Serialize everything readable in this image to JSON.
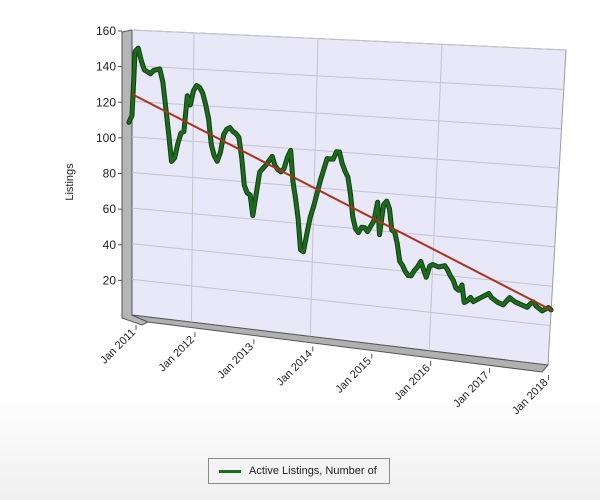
{
  "chart_data": {
    "type": "line",
    "ylabel": "Listings",
    "xlabel": "",
    "ylim": [
      0,
      160
    ],
    "yticks": [
      20,
      40,
      60,
      80,
      100,
      120,
      140,
      160
    ],
    "xticks": [
      "Jan 2011",
      "Jan 2012",
      "Jan 2013",
      "Jan 2014",
      "Jan 2015",
      "Jan 2016",
      "Jan 2017",
      "Jan 2018"
    ],
    "legend": "bottom-center",
    "grid": true,
    "three_d": true,
    "colors": {
      "series": "#1e6b1e",
      "trend": "#a8321e",
      "plot_bg": "#e8e8f8"
    },
    "series": [
      {
        "name": "Active Listings, Number of",
        "x": [
          2010.95,
          2011.0,
          2011.05,
          2011.1,
          2011.15,
          2011.2,
          2011.25,
          2011.3,
          2011.35,
          2011.45,
          2011.5,
          2011.55,
          2011.6,
          2011.65,
          2011.7,
          2011.75,
          2011.8,
          2011.85,
          2011.9,
          2011.95,
          2012.0,
          2012.05,
          2012.1,
          2012.15,
          2012.2,
          2012.25,
          2012.3,
          2012.35,
          2012.4,
          2012.45,
          2012.5,
          2012.55,
          2012.6,
          2012.65,
          2012.7,
          2012.75,
          2012.8,
          2012.85,
          2012.9,
          2012.95,
          2013.0,
          2013.1,
          2013.2,
          2013.3,
          2013.35,
          2013.4,
          2013.45,
          2013.5,
          2013.55,
          2013.6,
          2013.65,
          2013.7,
          2013.75,
          2013.8,
          2013.85,
          2013.9,
          2013.95,
          2014.0,
          2014.1,
          2014.2,
          2014.3,
          2014.35,
          2014.4,
          2014.45,
          2014.5,
          2014.55,
          2014.6,
          2014.65,
          2014.7,
          2014.75,
          2014.8,
          2014.85,
          2014.9,
          2014.95,
          2015.0,
          2015.05,
          2015.1,
          2015.15,
          2015.2,
          2015.25,
          2015.3,
          2015.35,
          2015.4,
          2015.45,
          2015.5,
          2015.55,
          2015.6,
          2015.65,
          2015.7,
          2015.75,
          2015.8,
          2015.85,
          2015.9,
          2015.95,
          2016.0,
          2016.1,
          2016.2,
          2016.25,
          2016.3,
          2016.35,
          2016.4,
          2016.45,
          2016.5,
          2016.55,
          2016.6,
          2016.65,
          2016.7,
          2016.75,
          2016.8,
          2016.85,
          2016.9,
          2016.95,
          2017.0,
          2017.1,
          2017.2,
          2017.25,
          2017.3,
          2017.35,
          2017.4,
          2017.5,
          2017.6,
          2017.65,
          2017.7,
          2017.75,
          2017.8,
          2017.85,
          2017.9,
          2017.95,
          2018.0
        ],
        "values": [
          108,
          112,
          148,
          150,
          143,
          138,
          137,
          136,
          138,
          139,
          132,
          118,
          103,
          88,
          90,
          98,
          104,
          105,
          125,
          120,
          128,
          131,
          130,
          127,
          121,
          113,
          99,
          93,
          90,
          95,
          105,
          108,
          109,
          107,
          106,
          104,
          93,
          78,
          74,
          73,
          62,
          86,
          90,
          95,
          90,
          88,
          87,
          89,
          95,
          99,
          82,
          73,
          62,
          46,
          45,
          55,
          64,
          70,
          84,
          96,
          96,
          100,
          100,
          94,
          90,
          87,
          78,
          66,
          60,
          58,
          61,
          61,
          59,
          62,
          65,
          75,
          58,
          74,
          76,
          72,
          61,
          60,
          54,
          45,
          43,
          40,
          38,
          38,
          41,
          43,
          46,
          42,
          38,
          44,
          45,
          44,
          45,
          43,
          40,
          38,
          34,
          33,
          36,
          27,
          28,
          30,
          28,
          29,
          30,
          31,
          32,
          33,
          31,
          29,
          28,
          30,
          32,
          31,
          30,
          29,
          28,
          30,
          31,
          29,
          28,
          27,
          28,
          29,
          28
        ]
      },
      {
        "name": "",
        "trend": true,
        "x": [
          2011.0,
          2018.0
        ],
        "values": [
          124,
          28
        ]
      }
    ]
  },
  "legend": {
    "label": "Active Listings, Number of"
  }
}
